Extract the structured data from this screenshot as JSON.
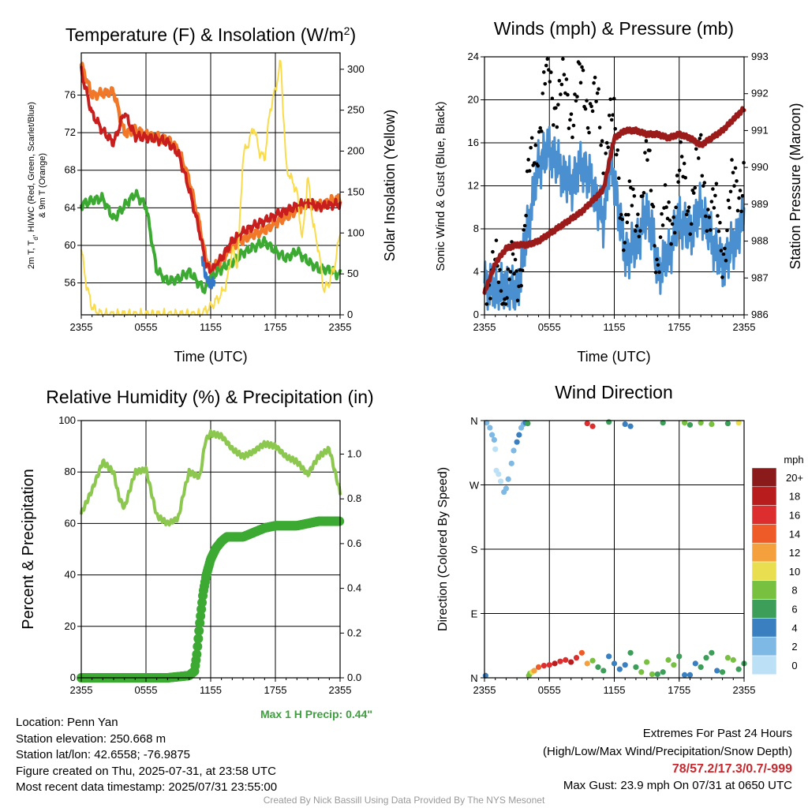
{
  "chart_data": [
    {
      "type": "line",
      "title": "Temperature (F) & Insolation (W/m²)",
      "xlabel": "Time (UTC)",
      "ylabel": "2m T, Td, HI/WC (Red, Green, Scarlet/Blue) & 9m T (Orange)",
      "y2label": "Solar Insolation (Yellow)",
      "x_ticks": [
        "2355",
        "0555",
        "1155",
        "1755",
        "2355"
      ],
      "ylim": [
        52.6,
        80.5
      ],
      "y_ticks": [
        56,
        60,
        64,
        68,
        72,
        76
      ],
      "y2lim": [
        0,
        320
      ],
      "y2_ticks": [
        0,
        50,
        100,
        150,
        200,
        250,
        300
      ],
      "colors": {
        "t9m": "#F07828",
        "t2m": "#C81E1E",
        "td": "#3CAA32",
        "hiwc": "#C81E1E",
        "hiwc_low": "#3278C8",
        "solar": "#FADC4B"
      },
      "series": [
        {
          "name": "9m T (Orange)",
          "x": [
            0,
            1,
            2,
            3,
            4,
            5,
            6,
            7,
            8,
            9,
            10,
            11,
            11.5,
            12,
            13,
            14,
            15,
            16,
            17,
            18,
            19,
            20,
            21,
            22,
            23,
            24
          ],
          "values": [
            79.2,
            76,
            76.2,
            76.4,
            71.9,
            72.3,
            71.8,
            71.5,
            71.3,
            70.2,
            67,
            62,
            58.8,
            57.4,
            58.3,
            60,
            60.6,
            61.2,
            61.6,
            62.4,
            63,
            63.8,
            64.4,
            64.2,
            64.7,
            65
          ]
        },
        {
          "name": "2m T (Red)",
          "x": [
            0,
            1,
            2,
            3,
            4,
            5,
            6,
            7,
            8,
            9,
            10,
            11,
            11.5,
            12,
            13,
            14,
            15,
            16,
            17,
            18,
            19,
            20,
            21,
            22,
            23,
            24
          ],
          "values": [
            78.5,
            74,
            72.2,
            70.9,
            74.2,
            71.6,
            71.5,
            71.3,
            71,
            69.8,
            66,
            61.3,
            58.2,
            57.2,
            58.6,
            60.5,
            61.4,
            62.1,
            62.6,
            63.2,
            63.7,
            64.2,
            64.6,
            64.1,
            64.3,
            64.4
          ]
        },
        {
          "name": "Td (Green)",
          "x": [
            0,
            1,
            2,
            3,
            4,
            5,
            6,
            7,
            8,
            9,
            10,
            11,
            11.5,
            12,
            13,
            14,
            15,
            16,
            17,
            18,
            19,
            20,
            21,
            22,
            23,
            24
          ],
          "values": [
            64.3,
            64.8,
            65,
            62.8,
            64.2,
            65.5,
            64.2,
            57.3,
            56.2,
            56.4,
            57.2,
            55.8,
            55.2,
            56.6,
            57.5,
            58.2,
            59.2,
            59.8,
            60.4,
            59.4,
            58.6,
            59.4,
            58.3,
            57.5,
            57.4,
            56.8
          ]
        },
        {
          "name": "Solar Insolation (Yellow)",
          "axis": "right",
          "x": [
            0,
            0.5,
            1,
            1.5,
            2,
            3,
            6,
            9,
            10,
            11,
            12,
            13,
            13.5,
            14,
            14.5,
            15,
            15.5,
            16,
            16.5,
            17,
            17.5,
            18,
            18.5,
            19,
            20,
            20.5,
            21,
            21.5,
            22,
            22.5,
            23,
            23.5,
            24
          ],
          "values": [
            80,
            35,
            10,
            3,
            0,
            0,
            0,
            0,
            0,
            0,
            10,
            25,
            40,
            80,
            60,
            195,
            210,
            230,
            200,
            190,
            250,
            275,
            310,
            180,
            150,
            90,
            170,
            110,
            80,
            30,
            40,
            60,
            100
          ]
        }
      ]
    },
    {
      "type": "scatter",
      "title": "Winds (mph) & Pressure (mb)",
      "xlabel": "Time (UTC)",
      "ylabel": "Sonic Wind & Gust (Blue, Black)",
      "y2label": "Station Pressure (Maroon)",
      "x_ticks": [
        "2355",
        "0555",
        "1155",
        "1755",
        "2355"
      ],
      "ylim": [
        0,
        24
      ],
      "y_ticks": [
        0,
        4,
        8,
        12,
        16,
        20,
        24
      ],
      "y2lim": [
        986,
        993
      ],
      "y2_ticks": [
        986,
        987,
        988,
        989,
        990,
        991,
        992,
        993
      ],
      "colors": {
        "wind": "#4A90D0",
        "gust": "#000000",
        "pressure": "#9B1B1B"
      },
      "series": [
        {
          "name": "Sonic Wind (Blue)",
          "x": [
            0,
            1,
            2,
            3,
            4,
            5,
            6,
            7,
            8,
            9,
            10,
            11,
            11.5,
            12,
            13,
            14,
            15,
            15.5,
            16,
            17,
            18,
            19,
            20,
            21,
            22,
            23,
            24
          ],
          "values": [
            3,
            2.2,
            2.5,
            2,
            8,
            14,
            15.5,
            13.5,
            12,
            14,
            12,
            8.5,
            14,
            12.5,
            5.5,
            6.5,
            9.5,
            8,
            4,
            5.5,
            9,
            7.5,
            10,
            7,
            4.5,
            6.5,
            9
          ]
        },
        {
          "name": "Gust (Black)",
          "x": [
            0,
            1,
            2,
            3,
            4,
            5,
            6,
            7,
            8,
            9,
            10,
            11,
            11.5,
            12,
            13,
            14,
            15,
            15.5,
            16,
            17,
            18,
            19,
            20,
            21,
            22,
            23,
            24
          ],
          "values": [
            5,
            3,
            3,
            3,
            11,
            18,
            22,
            20,
            20,
            20.5,
            20.5,
            15,
            19,
            16,
            8.5,
            9.5,
            13.5,
            11,
            6,
            9,
            12.5,
            11,
            14,
            9.5,
            7,
            11,
            14
          ]
        },
        {
          "name": "Station Pressure (Maroon)",
          "axis": "right",
          "x": [
            0,
            1,
            2,
            3,
            4,
            5,
            6,
            7,
            8,
            9,
            10,
            11,
            12,
            13,
            14,
            15,
            16,
            17,
            18,
            19,
            20,
            21,
            22,
            23,
            24
          ],
          "values": [
            986.6,
            987.4,
            987.8,
            987.9,
            987.9,
            988.0,
            988.2,
            988.4,
            988.6,
            988.8,
            989.1,
            989.4,
            990.8,
            991.0,
            991.0,
            990.9,
            990.9,
            990.8,
            990.9,
            990.8,
            990.6,
            990.8,
            991.0,
            991.3,
            991.6
          ]
        }
      ]
    },
    {
      "type": "line",
      "title": "Relative Humidity (%) & Precipitation (in)",
      "xlabel": "",
      "ylabel": "Percent & Precipitation",
      "x_ticks": [
        "2355",
        "0555",
        "1155",
        "1755",
        "2355"
      ],
      "ylim": [
        0,
        100
      ],
      "y_ticks": [
        0,
        20,
        40,
        60,
        80,
        100
      ],
      "y2lim": [
        0,
        1.15
      ],
      "y2_ticks": [
        "0.0",
        "0.2",
        "0.4",
        "0.6",
        "0.8",
        "1.0"
      ],
      "colors": {
        "rh": "#8CC850",
        "precip": "#3CAA32"
      },
      "annotation": "Max 1 H Precip: 0.44\"",
      "series": [
        {
          "name": "RH (%)",
          "x": [
            0,
            1,
            2,
            3,
            3.5,
            4,
            5,
            6,
            7,
            8,
            9,
            9.5,
            10,
            11,
            11.5,
            12,
            13,
            14,
            15,
            16,
            17,
            18,
            19,
            20,
            21,
            22,
            23,
            24
          ],
          "values": [
            64,
            73,
            84,
            80,
            70,
            66,
            80,
            81,
            63,
            60,
            62,
            72,
            80,
            78,
            92,
            95,
            94,
            89,
            86,
            88,
            91,
            90,
            86,
            84,
            79,
            86,
            89,
            72
          ]
        },
        {
          "name": "Precipitation (in)",
          "axis": "right",
          "x": [
            0,
            2,
            4,
            6,
            8,
            10,
            10.5,
            10.7,
            11,
            11.3,
            11.6,
            12,
            12.5,
            13,
            13.5,
            14,
            15,
            16,
            17,
            18,
            19,
            20,
            21,
            22,
            23,
            24
          ],
          "values": [
            0,
            0,
            0,
            0,
            0,
            0.01,
            0.03,
            0.1,
            0.25,
            0.38,
            0.46,
            0.53,
            0.58,
            0.61,
            0.63,
            0.63,
            0.63,
            0.65,
            0.67,
            0.68,
            0.68,
            0.68,
            0.69,
            0.7,
            0.7,
            0.7
          ]
        }
      ]
    },
    {
      "type": "scatter",
      "title": "Wind Direction",
      "ylabel": "Direction (Colored By Speed)",
      "x_ticks": [
        "2355",
        "0555",
        "1155",
        "1755",
        "2355"
      ],
      "y_ticks": [
        "N",
        "E",
        "S",
        "W",
        "N"
      ],
      "y_tick_degrees": [
        0,
        90,
        180,
        270,
        360
      ],
      "colorbar": {
        "unit": "mph",
        "labels": [
          "20+",
          "18",
          "16",
          "14",
          "12",
          "10",
          "8",
          "6",
          "4",
          "2",
          "0"
        ],
        "colors": [
          "#8B1A1A",
          "#B81C1C",
          "#DC2E2E",
          "#EE5A28",
          "#F4A03C",
          "#E8DE50",
          "#78C040",
          "#3C9E58",
          "#3A80C0",
          "#7EB8E4",
          "#BCE0F6"
        ]
      },
      "series": [
        {
          "name": "Direction",
          "x": [
            0.1,
            0.2,
            0.5,
            0.7,
            0.9,
            1.0,
            1.1,
            1.3,
            1.5,
            1.8,
            2.0,
            2.2,
            2.5,
            2.7,
            3.0,
            3.2,
            3.4,
            3.6,
            3.8,
            4.0,
            4.1,
            4.2,
            4.4,
            4.6,
            5.0,
            5.5,
            6.0,
            6.5,
            7.0,
            7.5,
            8.0,
            8.5,
            9.0,
            9.5,
            10.0,
            10.5,
            11.0,
            11.5,
            12.0,
            12.5,
            13.0,
            13.5,
            14.0,
            14.5,
            15.0,
            15.5,
            16.0,
            16.5,
            17.0,
            17.5,
            18.0,
            18.5,
            19.0,
            19.5,
            20.0,
            20.5,
            21.0,
            21.5,
            22.0,
            22.5,
            23.0,
            23.5,
            24.0,
            9.5,
            10.0,
            11.5,
            13.0,
            13.5,
            16.5,
            18.5,
            19.0,
            20.0,
            21.0,
            22.5,
            23.5
          ],
          "values": [
            3,
            357,
            350,
            340,
            333,
            320,
            290,
            285,
            275,
            260,
            265,
            278,
            300,
            318,
            330,
            340,
            350,
            355,
            357,
            356,
            3,
            6,
            8,
            10,
            15,
            17,
            18,
            20,
            23,
            25,
            22,
            28,
            35,
            20,
            24,
            15,
            10,
            30,
            20,
            12,
            18,
            35,
            15,
            8,
            22,
            5,
            5,
            8,
            25,
            18,
            30,
            4,
            4,
            20,
            15,
            28,
            35,
            10,
            8,
            28,
            25,
            12,
            20,
            356,
            352,
            358,
            355,
            352,
            357,
            357,
            354,
            357,
            355,
            356,
            357
          ],
          "speeds": [
            4,
            3,
            3,
            2,
            2,
            1,
            1,
            1,
            1,
            2,
            3,
            3,
            3,
            3,
            4,
            4,
            3,
            3,
            4,
            6,
            8,
            8,
            10,
            12,
            14,
            16,
            17,
            18,
            17,
            16,
            18,
            16,
            14,
            12,
            8,
            6,
            6,
            5,
            4,
            4,
            5,
            6,
            6,
            8,
            8,
            8,
            6,
            7,
            8,
            9,
            6,
            4,
            4,
            5,
            6,
            7,
            6,
            5,
            6,
            8,
            8,
            7,
            6,
            17,
            16,
            6,
            5,
            4,
            6,
            8,
            6,
            9,
            8,
            6,
            10
          ]
        }
      ]
    }
  ],
  "info": {
    "location": "Location: Penn Yan",
    "elevation": "Station elevation: 250.668 m",
    "latlon": "Station lat/lon: 42.6558; -76.9875",
    "created": "Figure created on Thu, 2025-07-31, at 23:58 UTC",
    "recent": "Most recent data timestamp: 2025/07/31 23:55:00"
  },
  "extremes": {
    "title": "Extremes For Past 24 Hours",
    "legend": "(High/Low/Max Wind/Precipitation/Snow Depth)",
    "values": "78/57.2/17.3/0.7/-999",
    "values_color": "#C8282D",
    "gust": "Max Gust: 23.9 mph On 07/31 at 0650 UTC"
  },
  "credit": "Created By Nick Bassill Using Data Provided By The NYS Mesonet",
  "panel1_ylabel_lines": [
    "2m T, Td, HI/WC (Red, Green, Scarlet/Blue)",
    "& 9m T (Orange)"
  ],
  "panel1_ylabel_parts": {
    "a": "2m T, T",
    "sub": "d",
    "b": ", HI/WC (Red, Green, Scarlet/Blue)"
  }
}
